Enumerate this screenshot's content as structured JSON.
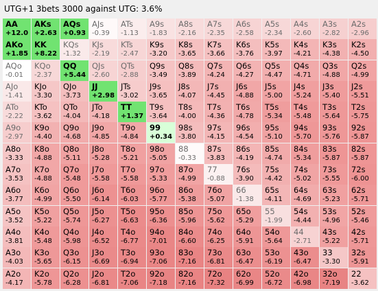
{
  "title": "UTG+1 3bets 3000 against UTG: 3.6%",
  "colors": {
    "strong_green": "#71e371",
    "light_green": "#d8ffd8",
    "white": "#ffffff",
    "pale_pink": "#f9e6e6",
    "pink": "#f5c3c3",
    "red": "#ef9a9a",
    "deep_red": "#e88282"
  },
  "grid": [
    [
      {
        "hand": "AA",
        "ev": "+12.0"
      },
      {
        "hand": "AKs",
        "ev": "+2.63"
      },
      {
        "hand": "AQs",
        "ev": "+0.93"
      },
      {
        "hand": "AJs",
        "ev": "-0.39"
      },
      {
        "hand": "ATs",
        "ev": "-1.13"
      },
      {
        "hand": "A9s",
        "ev": "-1.83"
      },
      {
        "hand": "A8s",
        "ev": "-2.16"
      },
      {
        "hand": "A7s",
        "ev": "-2.35"
      },
      {
        "hand": "A6s",
        "ev": "-2.58"
      },
      {
        "hand": "A5s",
        "ev": "-2.34"
      },
      {
        "hand": "A4s",
        "ev": "-2.60"
      },
      {
        "hand": "A3s",
        "ev": "-2.82"
      },
      {
        "hand": "A2s",
        "ev": "-2.96"
      }
    ],
    [
      {
        "hand": "AKo",
        "ev": "+1.85"
      },
      {
        "hand": "KK",
        "ev": "+8.22"
      },
      {
        "hand": "KQs",
        "ev": "-1.32"
      },
      {
        "hand": "KJs",
        "ev": "-2.19"
      },
      {
        "hand": "KTs",
        "ev": "-2.47"
      },
      {
        "hand": "K9s",
        "ev": "-3.20"
      },
      {
        "hand": "K8s",
        "ev": "-3.65"
      },
      {
        "hand": "K7s",
        "ev": "-3.66"
      },
      {
        "hand": "K6s",
        "ev": "-3.76"
      },
      {
        "hand": "K5s",
        "ev": "-3.97"
      },
      {
        "hand": "K4s",
        "ev": "-4.21"
      },
      {
        "hand": "K3s",
        "ev": "-4.38"
      },
      {
        "hand": "K2s",
        "ev": "-4.50"
      }
    ],
    [
      {
        "hand": "AQo",
        "ev": "-0.01"
      },
      {
        "hand": "KQo",
        "ev": "-2.37"
      },
      {
        "hand": "QQ",
        "ev": "+5.44"
      },
      {
        "hand": "QJs",
        "ev": "-2.60"
      },
      {
        "hand": "QTs",
        "ev": "-2.88"
      },
      {
        "hand": "Q9s",
        "ev": "-3.49"
      },
      {
        "hand": "Q8s",
        "ev": "-3.89"
      },
      {
        "hand": "Q7s",
        "ev": "-4.24"
      },
      {
        "hand": "Q6s",
        "ev": "-4.27"
      },
      {
        "hand": "Q5s",
        "ev": "-4.47"
      },
      {
        "hand": "Q4s",
        "ev": "-4.71"
      },
      {
        "hand": "Q3s",
        "ev": "-4.88"
      },
      {
        "hand": "Q2s",
        "ev": "-4.99"
      }
    ],
    [
      {
        "hand": "AJo",
        "ev": "-1.41"
      },
      {
        "hand": "KJo",
        "ev": "-3.30"
      },
      {
        "hand": "QJo",
        "ev": "-3.73"
      },
      {
        "hand": "JJ",
        "ev": "+2.98"
      },
      {
        "hand": "JTs",
        "ev": "-3.02"
      },
      {
        "hand": "J9s",
        "ev": "-3.65"
      },
      {
        "hand": "J8s",
        "ev": "-4.07"
      },
      {
        "hand": "J7s",
        "ev": "-4.45"
      },
      {
        "hand": "J6s",
        "ev": "-4.88"
      },
      {
        "hand": "J5s",
        "ev": "-5.00"
      },
      {
        "hand": "J4s",
        "ev": "-5.24"
      },
      {
        "hand": "J3s",
        "ev": "-5.40"
      },
      {
        "hand": "J2s",
        "ev": "-5.51"
      }
    ],
    [
      {
        "hand": "ATo",
        "ev": "-2.22"
      },
      {
        "hand": "KTo",
        "ev": "-3.62"
      },
      {
        "hand": "QTo",
        "ev": "-4.04"
      },
      {
        "hand": "JTo",
        "ev": "-4.18"
      },
      {
        "hand": "TT",
        "ev": "+1.37"
      },
      {
        "hand": "T9s",
        "ev": "-3.64"
      },
      {
        "hand": "T8s",
        "ev": "-4.00"
      },
      {
        "hand": "T7s",
        "ev": "-4.36"
      },
      {
        "hand": "T6s",
        "ev": "-4.78"
      },
      {
        "hand": "T5s",
        "ev": "-5.34"
      },
      {
        "hand": "T4s",
        "ev": "-5.48"
      },
      {
        "hand": "T3s",
        "ev": "-5.64"
      },
      {
        "hand": "T2s",
        "ev": "-5.75"
      }
    ],
    [
      {
        "hand": "A9o",
        "ev": "-2.97"
      },
      {
        "hand": "K9o",
        "ev": "-4.40"
      },
      {
        "hand": "Q9o",
        "ev": "-4.68"
      },
      {
        "hand": "J9o",
        "ev": "-4.85"
      },
      {
        "hand": "T9o",
        "ev": "-4.84"
      },
      {
        "hand": "99",
        "ev": "+0.34"
      },
      {
        "hand": "98s",
        "ev": "-3.80"
      },
      {
        "hand": "97s",
        "ev": "-4.15"
      },
      {
        "hand": "96s",
        "ev": "-4.54"
      },
      {
        "hand": "95s",
        "ev": "-5.10"
      },
      {
        "hand": "94s",
        "ev": "-5.70"
      },
      {
        "hand": "93s",
        "ev": "-5.76"
      },
      {
        "hand": "92s",
        "ev": "-5.87"
      }
    ],
    [
      {
        "hand": "A8o",
        "ev": "-3.33"
      },
      {
        "hand": "K8o",
        "ev": "-4.88"
      },
      {
        "hand": "Q8o",
        "ev": "-5.11"
      },
      {
        "hand": "J8o",
        "ev": "-5.28"
      },
      {
        "hand": "T8o",
        "ev": "-5.21"
      },
      {
        "hand": "98o",
        "ev": "-5.05"
      },
      {
        "hand": "88",
        "ev": "-0.33"
      },
      {
        "hand": "87s",
        "ev": "-3.83"
      },
      {
        "hand": "86s",
        "ev": "-4.19"
      },
      {
        "hand": "85s",
        "ev": "-4.74"
      },
      {
        "hand": "84s",
        "ev": "-5.34"
      },
      {
        "hand": "83s",
        "ev": "-5.87"
      },
      {
        "hand": "82s",
        "ev": "-5.87"
      }
    ],
    [
      {
        "hand": "A7o",
        "ev": "-3.53"
      },
      {
        "hand": "K7o",
        "ev": "-4.88"
      },
      {
        "hand": "Q7o",
        "ev": "-5.48"
      },
      {
        "hand": "J7o",
        "ev": "-5.58"
      },
      {
        "hand": "T7o",
        "ev": "-5.58"
      },
      {
        "hand": "97o",
        "ev": "-5.33"
      },
      {
        "hand": "87o",
        "ev": "-4.99"
      },
      {
        "hand": "77",
        "ev": "-0.88"
      },
      {
        "hand": "76s",
        "ev": "-3.90"
      },
      {
        "hand": "75s",
        "ev": "-4.42"
      },
      {
        "hand": "74s",
        "ev": "-5.02"
      },
      {
        "hand": "73s",
        "ev": "-5.55"
      },
      {
        "hand": "72s",
        "ev": "-6.00"
      }
    ],
    [
      {
        "hand": "A6o",
        "ev": "-3.77"
      },
      {
        "hand": "K6o",
        "ev": "-4.99"
      },
      {
        "hand": "Q6o",
        "ev": "-5.50"
      },
      {
        "hand": "J6o",
        "ev": "-6.14"
      },
      {
        "hand": "T6o",
        "ev": "-6.03"
      },
      {
        "hand": "96o",
        "ev": "-5.77"
      },
      {
        "hand": "86o",
        "ev": "-5.38"
      },
      {
        "hand": "76o",
        "ev": "-5.07"
      },
      {
        "hand": "66",
        "ev": "-1.38"
      },
      {
        "hand": "65s",
        "ev": "-4.11"
      },
      {
        "hand": "64s",
        "ev": "-4.69"
      },
      {
        "hand": "63s",
        "ev": "-5.23"
      },
      {
        "hand": "62s",
        "ev": "-5.71"
      }
    ],
    [
      {
        "hand": "A5o",
        "ev": "-3.52"
      },
      {
        "hand": "K5o",
        "ev": "-5.22"
      },
      {
        "hand": "Q5o",
        "ev": "-5.74"
      },
      {
        "hand": "J5o",
        "ev": "-6.27"
      },
      {
        "hand": "T5o",
        "ev": "-6.63"
      },
      {
        "hand": "95o",
        "ev": "-6.36"
      },
      {
        "hand": "85o",
        "ev": "-5.96"
      },
      {
        "hand": "75o",
        "ev": "-5.62"
      },
      {
        "hand": "65o",
        "ev": "-5.29"
      },
      {
        "hand": "55",
        "ev": "-1.99"
      },
      {
        "hand": "54s",
        "ev": "-4.44"
      },
      {
        "hand": "53s",
        "ev": "-4.96"
      },
      {
        "hand": "52s",
        "ev": "-5.46"
      }
    ],
    [
      {
        "hand": "A4o",
        "ev": "-3.81"
      },
      {
        "hand": "K4o",
        "ev": "-5.48"
      },
      {
        "hand": "Q4o",
        "ev": "-5.98"
      },
      {
        "hand": "J4o",
        "ev": "-6.52"
      },
      {
        "hand": "T4o",
        "ev": "-6.77"
      },
      {
        "hand": "94o",
        "ev": "-7.01"
      },
      {
        "hand": "84o",
        "ev": "-6.60"
      },
      {
        "hand": "74o",
        "ev": "-6.25"
      },
      {
        "hand": "64o",
        "ev": "-5.91"
      },
      {
        "hand": "54o",
        "ev": "-5.64"
      },
      {
        "hand": "44",
        "ev": "-2.71"
      },
      {
        "hand": "43s",
        "ev": "-5.22"
      },
      {
        "hand": "42s",
        "ev": "-5.71"
      }
    ],
    [
      {
        "hand": "A3o",
        "ev": "-4.03"
      },
      {
        "hand": "K3o",
        "ev": "-5.65"
      },
      {
        "hand": "Q3o",
        "ev": "-6.15"
      },
      {
        "hand": "J3o",
        "ev": "-6.69"
      },
      {
        "hand": "T3o",
        "ev": "-6.94"
      },
      {
        "hand": "93o",
        "ev": "-7.06"
      },
      {
        "hand": "83o",
        "ev": "-7.16"
      },
      {
        "hand": "73o",
        "ev": "-6.81"
      },
      {
        "hand": "63o",
        "ev": "-6.47"
      },
      {
        "hand": "53o",
        "ev": "-6.19"
      },
      {
        "hand": "43o",
        "ev": "-6.47"
      },
      {
        "hand": "33",
        "ev": "-3.30"
      },
      {
        "hand": "32s",
        "ev": "-5.91"
      }
    ],
    [
      {
        "hand": "A2o",
        "ev": "-4.17"
      },
      {
        "hand": "K2o",
        "ev": "-5.78"
      },
      {
        "hand": "Q2o",
        "ev": "-6.28"
      },
      {
        "hand": "J2o",
        "ev": "-6.81"
      },
      {
        "hand": "T2o",
        "ev": "-7.06"
      },
      {
        "hand": "92o",
        "ev": "-7.18"
      },
      {
        "hand": "82o",
        "ev": "-7.16"
      },
      {
        "hand": "72o",
        "ev": "-7.32"
      },
      {
        "hand": "62o",
        "ev": "-6.99"
      },
      {
        "hand": "52o",
        "ev": "-6.72"
      },
      {
        "hand": "42o",
        "ev": "-6.98"
      },
      {
        "hand": "32o",
        "ev": "-7.19"
      },
      {
        "hand": "22",
        "ev": "-3.62"
      }
    ]
  ]
}
